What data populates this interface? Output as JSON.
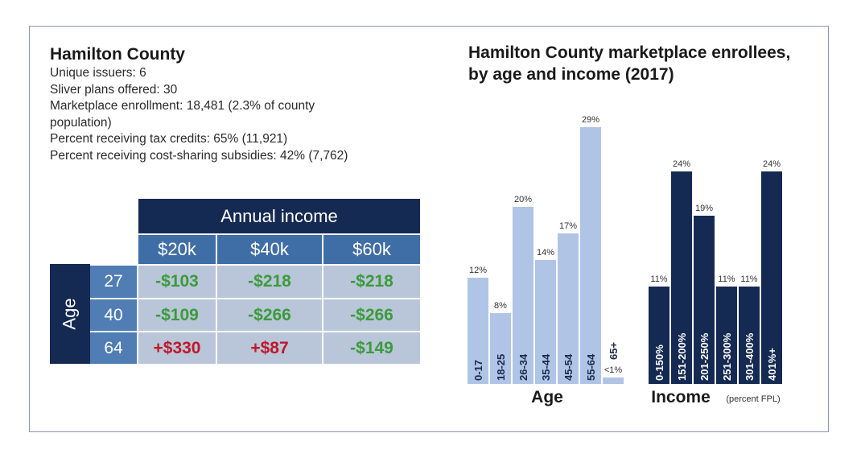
{
  "info": {
    "title": "Hamilton County",
    "lines": [
      "Unique issuers: 6",
      "Sliver plans offered: 30",
      "Marketplace enrollment: 18,481 (2.3% of county population)",
      "Percent receiving tax credits:  65% (11,921)",
      "Percent receiving cost-sharing subsidies: 42% (7,762)"
    ]
  },
  "table": {
    "header": "Annual income",
    "side_label": "Age",
    "income_cols": [
      "$20k",
      "$40k",
      "$60k"
    ],
    "rows": [
      {
        "age": "27",
        "values": [
          "-$103",
          "-$218",
          "-$218"
        ]
      },
      {
        "age": "40",
        "values": [
          "-$109",
          "-$266",
          "-$266"
        ]
      },
      {
        "age": "64",
        "values": [
          "+$330",
          "+$87",
          "-$149"
        ]
      }
    ]
  },
  "colors": {
    "navy": "#152a52",
    "age_bar": "#b0c4e6",
    "income_bar": "#152a52",
    "negative": "#3b9b3b",
    "positive": "#c0182a"
  },
  "chart_data": {
    "type": "bar",
    "title": "Hamilton County marketplace enrollees, by age and income (2017)",
    "groups": [
      {
        "name": "Age",
        "subtitle": "",
        "categories": [
          "0-17",
          "18-25",
          "26-34",
          "35-44",
          "45-54",
          "55-64",
          "65+"
        ],
        "values": [
          12,
          8,
          20,
          14,
          17,
          29,
          0.5
        ],
        "labels": [
          "12%",
          "8%",
          "20%",
          "14%",
          "17%",
          "29%",
          "<1%"
        ]
      },
      {
        "name": "Income",
        "subtitle": "(percent FPL)",
        "categories": [
          "0-150%",
          "151-200%",
          "201-250%",
          "251-300%",
          "301-400%",
          "401%+"
        ],
        "values": [
          11,
          24,
          19,
          11,
          11,
          24
        ],
        "labels": [
          "11%",
          "24%",
          "19%",
          "11%",
          "11%",
          "24%"
        ]
      }
    ],
    "ylabel": "",
    "ylim": [
      0,
      29
    ]
  }
}
